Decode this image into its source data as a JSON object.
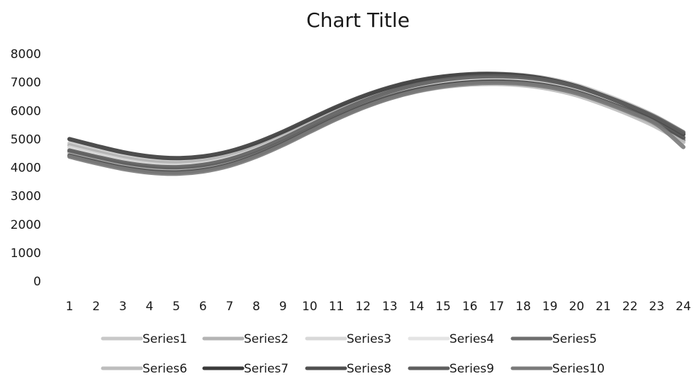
{
  "chart_data": {
    "type": "line",
    "title": "Chart Title",
    "xlabel": "",
    "ylabel": "",
    "x": [
      1,
      2,
      3,
      4,
      5,
      6,
      7,
      8,
      9,
      10,
      11,
      12,
      13,
      14,
      15,
      16,
      17,
      18,
      19,
      20,
      21,
      22,
      23,
      24
    ],
    "y_ticks": [
      0,
      1000,
      2000,
      3000,
      4000,
      5000,
      6000,
      7000,
      8000
    ],
    "ylim": [
      0,
      8000
    ],
    "grid": false,
    "legend_position": "bottom",
    "series": [
      {
        "name": "Series1",
        "color": "#c8c8c8",
        "values": [
          4850,
          4620,
          4410,
          4270,
          4220,
          4290,
          4480,
          4790,
          5190,
          5640,
          6080,
          6470,
          6790,
          7030,
          7190,
          7280,
          7300,
          7250,
          7120,
          6900,
          6580,
          6210,
          5780,
          5250
        ]
      },
      {
        "name": "Series2",
        "color": "#b4b4b4",
        "values": [
          4780,
          4550,
          4340,
          4200,
          4150,
          4220,
          4410,
          4720,
          5120,
          5570,
          6010,
          6400,
          6720,
          6960,
          7120,
          7210,
          7230,
          7180,
          7050,
          6830,
          6510,
          6140,
          5710,
          5180
        ]
      },
      {
        "name": "Series3",
        "color": "#d8d8d8",
        "values": [
          4700,
          4470,
          4260,
          4120,
          4070,
          4140,
          4330,
          4640,
          5040,
          5490,
          5930,
          6320,
          6640,
          6880,
          7040,
          7130,
          7150,
          7100,
          6970,
          6750,
          6430,
          6060,
          5630,
          5100
        ]
      },
      {
        "name": "Series4",
        "color": "#e4e4e4",
        "values": [
          4630,
          4400,
          4190,
          4050,
          4000,
          4070,
          4260,
          4570,
          4970,
          5420,
          5860,
          6250,
          6570,
          6810,
          6970,
          7060,
          7080,
          7030,
          6900,
          6680,
          6360,
          5990,
          5560,
          5030
        ]
      },
      {
        "name": "Series5",
        "color": "#6e6e6e",
        "values": [
          4560,
          4330,
          4120,
          3980,
          3930,
          4000,
          4190,
          4500,
          4900,
          5350,
          5790,
          6180,
          6500,
          6740,
          6900,
          6990,
          7010,
          6960,
          6830,
          6610,
          6290,
          5920,
          5490,
          4960
        ]
      },
      {
        "name": "Series6",
        "color": "#bdbdbd",
        "values": [
          4490,
          4260,
          4050,
          3910,
          3860,
          3930,
          4120,
          4430,
          4830,
          5280,
          5720,
          6110,
          6430,
          6670,
          6830,
          6920,
          6940,
          6890,
          6760,
          6540,
          6220,
          5850,
          5420,
          4890
        ]
      },
      {
        "name": "Series7",
        "color": "#3a3a3a",
        "values": [
          5000,
          4760,
          4540,
          4390,
          4330,
          4390,
          4570,
          4870,
          5260,
          5700,
          6130,
          6510,
          6820,
          7050,
          7200,
          7280,
          7290,
          7230,
          7090,
          6860,
          6530,
          6150,
          5710,
          5170
        ]
      },
      {
        "name": "Series8",
        "color": "#505050",
        "values": [
          4420,
          4200,
          4000,
          3870,
          3830,
          3910,
          4110,
          4430,
          4840,
          5300,
          5750,
          6150,
          6480,
          6730,
          6900,
          7000,
          7030,
          6990,
          6870,
          6660,
          6350,
          5990,
          5570,
          5050
        ]
      },
      {
        "name": "Series9",
        "color": "#5e5e5e",
        "values": [
          4600,
          4380,
          4180,
          4050,
          4010,
          4090,
          4290,
          4610,
          5020,
          5480,
          5930,
          6330,
          6660,
          6910,
          7080,
          7180,
          7210,
          7170,
          7050,
          6840,
          6530,
          6170,
          5750,
          5230
        ]
      },
      {
        "name": "Series10",
        "color": "#7a7a7a",
        "values": [
          4380,
          4150,
          3950,
          3820,
          3780,
          3860,
          4060,
          4380,
          4790,
          5250,
          5700,
          6100,
          6430,
          6680,
          6850,
          6950,
          6980,
          6940,
          6820,
          6610,
          6300,
          5940,
          5520,
          4720
        ]
      }
    ]
  }
}
